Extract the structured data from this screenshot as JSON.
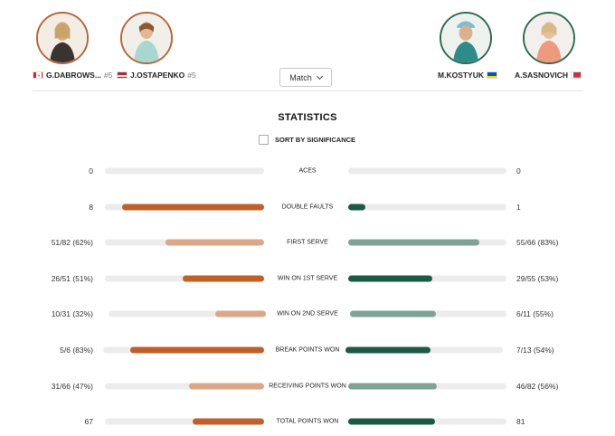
{
  "header": {
    "players": [
      {
        "name": "G.DABROWS...",
        "seed": "#5",
        "flag": "canada",
        "side": "left",
        "ring": "#b5673b"
      },
      {
        "name": "J.OSTAPENKO",
        "seed": "#5",
        "flag": "latvia",
        "side": "left",
        "ring": "#b5673b"
      },
      {
        "name": "M.KOSTYUK",
        "seed": "",
        "flag": "ukraine",
        "side": "right",
        "ring": "#2f6b50"
      },
      {
        "name": "A.SASNOVICH",
        "seed": "",
        "flag": "belarus",
        "side": "right",
        "ring": "#2f6b50"
      }
    ],
    "match_select": {
      "selected": "Match"
    }
  },
  "statistics": {
    "title": "STATISTICS",
    "sort_label": "SORT BY SIGNIFICANCE",
    "sort_checked": false,
    "colors": {
      "left_strong": "#c15f2a",
      "left_light": "#dca68a",
      "right_strong": "#1d5a45",
      "right_light": "#7ea395",
      "track": "#ececec"
    },
    "rows": [
      {
        "label": "ACES",
        "left": "0",
        "right": "0",
        "left_fill": 0,
        "right_fill": 0,
        "left_style": "strong",
        "right_style": "strong"
      },
      {
        "label": "DOUBLE FAULTS",
        "left": "8",
        "right": "1",
        "left_fill": 0.89,
        "right_fill": 0.11,
        "left_style": "strong",
        "right_style": "strong"
      },
      {
        "label": "FIRST SERVE",
        "left": "51/82 (62%)",
        "right": "55/66 (83%)",
        "left_fill": 0.62,
        "right_fill": 0.83,
        "left_style": "light",
        "right_style": "light"
      },
      {
        "label": "WIN ON 1ST SERVE",
        "left": "26/51 (51%)",
        "right": "29/55 (53%)",
        "left_fill": 0.51,
        "right_fill": 0.53,
        "left_style": "strong",
        "right_style": "strong"
      },
      {
        "label": "WIN ON 2ND SERVE",
        "left": "10/31 (32%)",
        "right": "6/11 (55%)",
        "left_fill": 0.32,
        "right_fill": 0.55,
        "left_style": "light",
        "right_style": "light"
      },
      {
        "label": "BREAK POINTS WON",
        "left": "5/6 (83%)",
        "right": "7/13 (54%)",
        "left_fill": 0.83,
        "right_fill": 0.54,
        "left_style": "strong",
        "right_style": "strong"
      },
      {
        "label": "RECEIVING POINTS WON",
        "left": "31/66 (47%)",
        "right": "46/82 (56%)",
        "left_fill": 0.47,
        "right_fill": 0.56,
        "left_style": "light",
        "right_style": "light"
      },
      {
        "label": "TOTAL POINTS WON",
        "left": "67",
        "right": "81",
        "left_fill": 0.45,
        "right_fill": 0.55,
        "left_style": "strong",
        "right_style": "strong"
      }
    ]
  }
}
